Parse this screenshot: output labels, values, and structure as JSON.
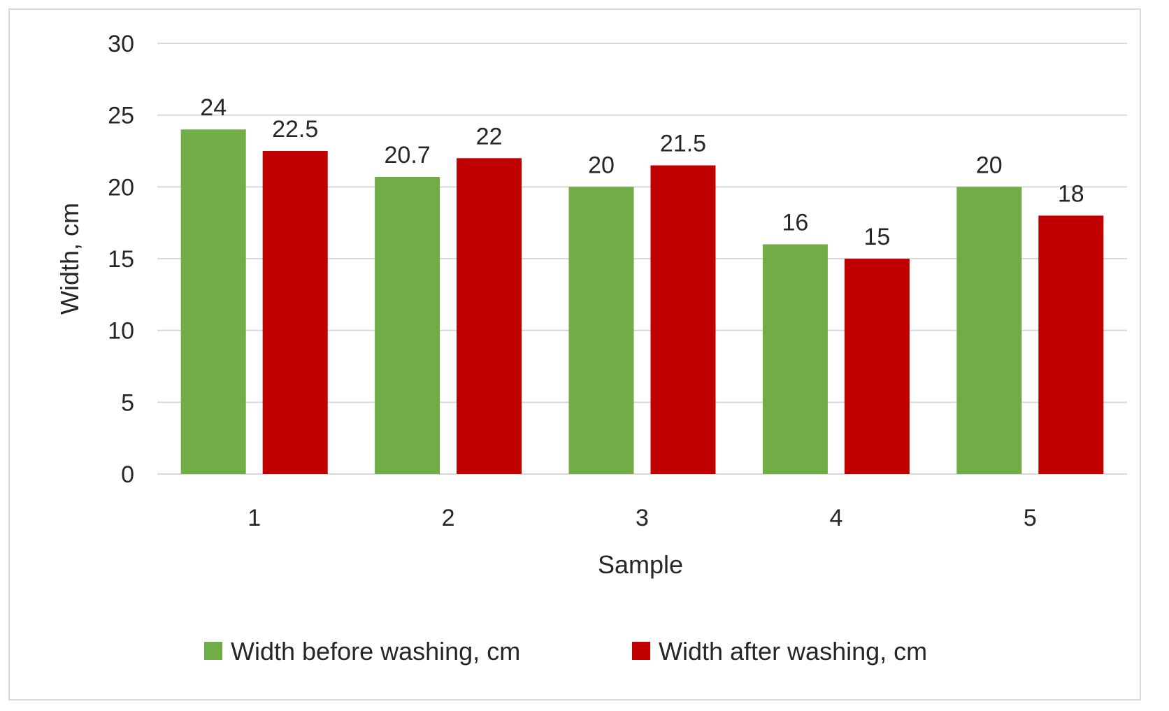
{
  "chart_data": {
    "type": "bar",
    "title": "",
    "xlabel": "Sample",
    "ylabel": "Width, cm",
    "categories": [
      "1",
      "2",
      "3",
      "4",
      "5"
    ],
    "series": [
      {
        "name": "Width before washing, cm",
        "color": "#70ad47",
        "values": [
          24,
          20.7,
          20,
          16,
          20
        ],
        "labels": [
          "24",
          "20.7",
          "20",
          "16",
          "20"
        ]
      },
      {
        "name": "Width after washing, cm",
        "color": "#c00000",
        "values": [
          22.5,
          22,
          21.5,
          15,
          18
        ],
        "labels": [
          "22.5",
          "22",
          "21.5",
          "15",
          "18"
        ]
      }
    ],
    "ylim": [
      0,
      30
    ],
    "yticks": [
      "0",
      "5",
      "10",
      "15",
      "20",
      "25",
      "30"
    ],
    "grid": true,
    "legend_position": "bottom"
  }
}
